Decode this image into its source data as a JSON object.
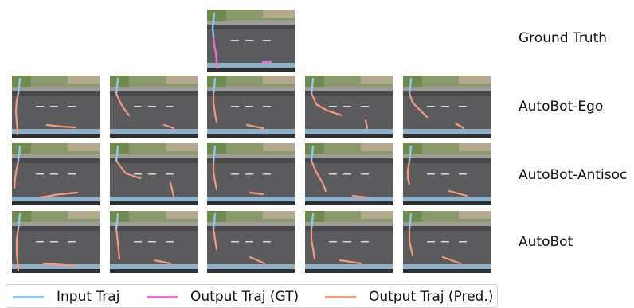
{
  "rows": [
    {
      "label": "Ground Truth"
    },
    {
      "label": "AutoBot-Ego"
    },
    {
      "label": "AutoBot-Antisoc"
    },
    {
      "label": "AutoBot"
    }
  ],
  "legend": [
    {
      "label": "Input Traj",
      "color": "#8fc8ef"
    },
    {
      "label": "Output Traj (GT)",
      "color": "#ee6fcf"
    },
    {
      "label": "Output Traj (Pred.)",
      "color": "#f59a80"
    }
  ],
  "colors": {
    "road": "#5b5b5d",
    "road_top": "#49484b",
    "grass": "#8a9a6d",
    "sidewalk": "#a09c9a",
    "input": "#8fc8ef",
    "gt": "#ee6fcf",
    "pred": "#f59a80"
  }
}
